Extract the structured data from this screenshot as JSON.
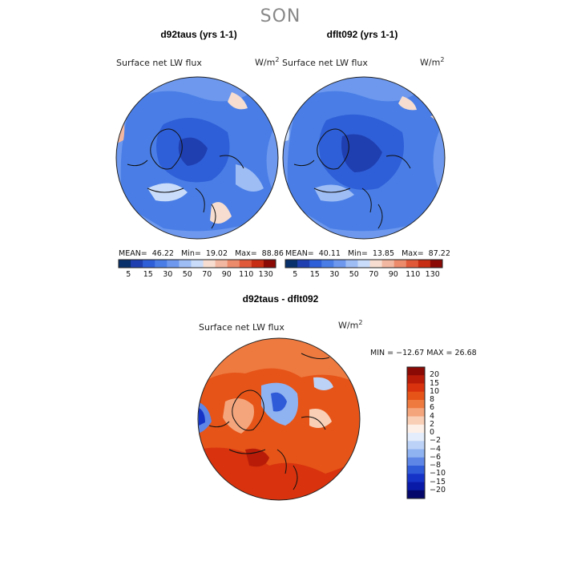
{
  "figure": {
    "season": "SON"
  },
  "chart_data": [
    {
      "type": "heatmap",
      "projection": "north-polar-stereographic",
      "title": "d92taus (yrs 1-1)",
      "subtitle": "Surface net LW flux",
      "units_label": "W/m",
      "units_power": "2",
      "stats": {
        "mean_label": "MEAN=",
        "mean": "46.22",
        "min_label": "Min=",
        "min": "19.02",
        "max_label": "Max=",
        "max": "88.86"
      },
      "colorbar": {
        "orientation": "horizontal",
        "colors": [
          "#08306b",
          "#1f3fb0",
          "#2f5fd8",
          "#4a7ee6",
          "#6d98ee",
          "#9ebdf5",
          "#c9dcf9",
          "#f6ddd0",
          "#f2b7a0",
          "#ec8b6c",
          "#e05a3a",
          "#c62d12",
          "#8b0a06"
        ],
        "tick_labels": [
          "5",
          "15",
          "30",
          "50",
          "70",
          "90",
          "110",
          "130"
        ]
      }
    },
    {
      "type": "heatmap",
      "projection": "north-polar-stereographic",
      "title": "dflt092 (yrs 1-1)",
      "subtitle": "Surface net LW flux",
      "units_label": "W/m",
      "units_power": "2",
      "stats": {
        "mean_label": "MEAN=",
        "mean": "40.11",
        "min_label": "Min=",
        "min": "13.85",
        "max_label": "Max=",
        "max": "87.22"
      },
      "colorbar": {
        "orientation": "horizontal",
        "colors": [
          "#08306b",
          "#1f3fb0",
          "#2f5fd8",
          "#4a7ee6",
          "#6d98ee",
          "#9ebdf5",
          "#c9dcf9",
          "#f6ddd0",
          "#f2b7a0",
          "#ec8b6c",
          "#e05a3a",
          "#c62d12",
          "#8b0a06"
        ],
        "tick_labels": [
          "5",
          "15",
          "30",
          "50",
          "70",
          "90",
          "110",
          "130"
        ]
      }
    },
    {
      "type": "heatmap",
      "projection": "north-polar-stereographic",
      "title": "d92taus - dflt092",
      "subtitle": "Surface net LW flux",
      "units_label": "W/m",
      "units_power": "2",
      "stats_text": "MIN = −12.67 MAX =  26.68",
      "colorbar": {
        "orientation": "vertical",
        "colors_top_to_bottom": [
          "#8b0a06",
          "#b81c08",
          "#d8330e",
          "#e65418",
          "#ee7a40",
          "#f4a57c",
          "#f9cfb6",
          "#fdf0e8",
          "#e3edfb",
          "#bcd3f7",
          "#8fb2f0",
          "#5e86e6",
          "#2f5ad8",
          "#1633c8",
          "#0a1aa8",
          "#05086a"
        ],
        "tick_labels": [
          "20",
          "15",
          "10",
          "8",
          "6",
          "4",
          "2",
          "0",
          "−2",
          "−4",
          "−6",
          "−8",
          "−10",
          "−15",
          "−20"
        ]
      }
    }
  ]
}
